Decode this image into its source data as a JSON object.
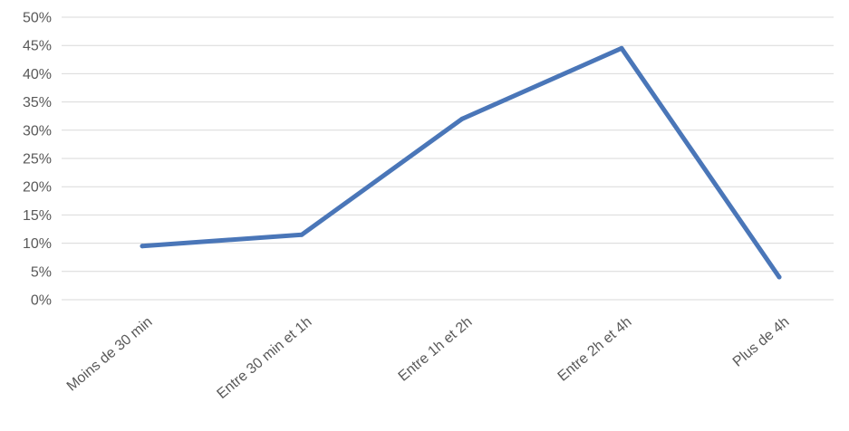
{
  "chart_data": {
    "type": "line",
    "categories": [
      "Moins de 30 min",
      "Entre 30 min et 1h",
      "Entre 1h et 2h",
      "Entre 2h et 4h",
      "Plus de 4h"
    ],
    "series": [
      {
        "values": [
          9.5,
          11.5,
          32,
          44.5,
          4
        ]
      }
    ],
    "y_ticks": [
      "0%",
      "5%",
      "10%",
      "15%",
      "20%",
      "25%",
      "30%",
      "35%",
      "40%",
      "45%",
      "50%"
    ],
    "ylim": [
      0,
      50
    ],
    "y_step": 5,
    "grid": true,
    "legend": "none",
    "line_color": "#4a76b8",
    "grid_color": "#d9d9d9",
    "text_color": "#595959"
  }
}
